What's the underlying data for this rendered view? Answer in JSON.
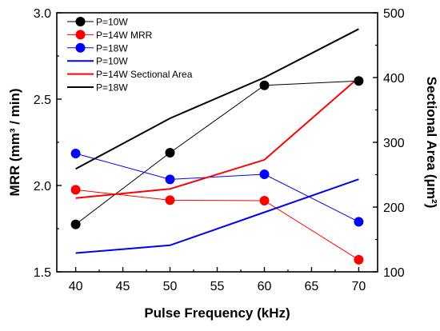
{
  "chart_data": {
    "type": "line",
    "x": [
      40,
      50,
      60,
      70
    ],
    "xlabel": "Pulse Frequency (kHz)",
    "xlim": [
      38,
      72
    ],
    "xticks": [
      40,
      45,
      50,
      55,
      60,
      65,
      70
    ],
    "ylabel_left": "MRR (mm³ / min)",
    "ylim_left": [
      1.5,
      3.0
    ],
    "yticks_left": [
      "1.5",
      "2.0",
      "2.5",
      "3.0"
    ],
    "ylabel_right": "Sectional Area (μm²)",
    "ylim_right": [
      100,
      500
    ],
    "yticks_right": [
      "100",
      "200",
      "300",
      "400",
      "500"
    ],
    "grid": false,
    "legend_position": "top-left",
    "series": [
      {
        "name": "P=10W",
        "axis": "left",
        "style": "marker-line",
        "color": "#000000",
        "values": [
          1.775,
          2.19,
          2.58,
          2.605
        ]
      },
      {
        "name": "P=14W MRR",
        "axis": "left",
        "style": "marker-line",
        "color": "#ff0000",
        "values": [
          1.975,
          1.915,
          1.912,
          1.57
        ]
      },
      {
        "name": "P=18W",
        "axis": "left",
        "style": "marker-line",
        "color": "#0000ff",
        "values": [
          2.185,
          2.035,
          2.065,
          1.79
        ]
      },
      {
        "name": "P=10W",
        "axis": "right",
        "style": "line",
        "color": "#0000ff",
        "values": [
          129,
          141,
          192,
          243
        ]
      },
      {
        "name": "P=14W Sectional Area",
        "axis": "right",
        "style": "line",
        "color": "#ff0000",
        "values": [
          214,
          228,
          273,
          400
        ]
      },
      {
        "name": "P=18W",
        "axis": "right",
        "style": "line",
        "color": "#000000",
        "values": [
          259,
          337,
          400,
          475
        ]
      }
    ]
  }
}
